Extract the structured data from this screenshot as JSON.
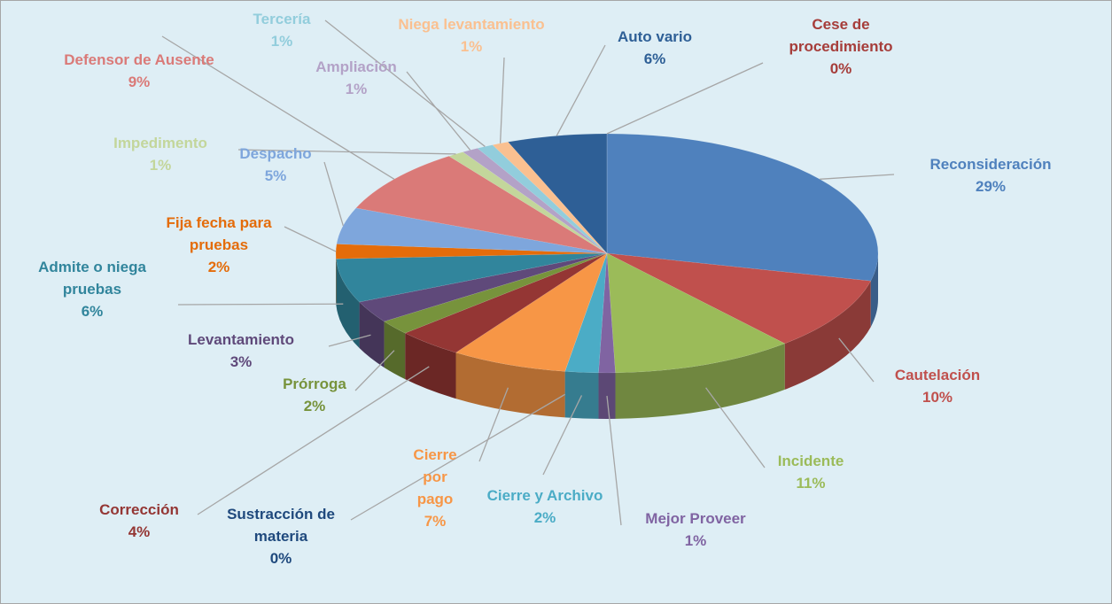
{
  "chart_data": {
    "type": "pie",
    "categories": [
      "Reconsideración",
      "Cautelación",
      "Incidente",
      "Mejor Proveer",
      "Cierre y Archivo",
      "Sustracción de materia",
      "Cierre por pago",
      "Corrección",
      "Prórroga",
      "Levantamiento",
      "Admite o niega pruebas",
      "Fija fecha para pruebas",
      "Despacho",
      "Defensor de Ausente",
      "Impedimento",
      "Ampliación",
      "Tercería",
      "Niega levantamiento",
      "Auto vario",
      "Cese de procedimiento"
    ],
    "values": [
      29,
      10,
      11,
      1,
      2,
      0,
      7,
      4,
      2,
      3,
      6,
      2,
      5,
      9,
      1,
      1,
      1,
      1,
      6,
      0
    ],
    "value_labels": [
      "29%",
      "10%",
      "11%",
      "1%",
      "2%",
      "0%",
      "7%",
      "4%",
      "2%",
      "3%",
      "6%",
      "2%",
      "5%",
      "9%",
      "1%",
      "1%",
      "1%",
      "1%",
      "6%",
      "0%"
    ],
    "colors": [
      "#4f81bd",
      "#c0504d",
      "#9bbb59",
      "#8064a2",
      "#4bacc6",
      "#1f497d",
      "#f79646",
      "#943634",
      "#77933c",
      "#5f497a",
      "#31859c",
      "#e46c0a",
      "#7ea6dc",
      "#da7a78",
      "#c3d69b",
      "#b3a2c7",
      "#92cddc",
      "#fac090",
      "#2e5f96",
      "#a63d3a"
    ]
  }
}
